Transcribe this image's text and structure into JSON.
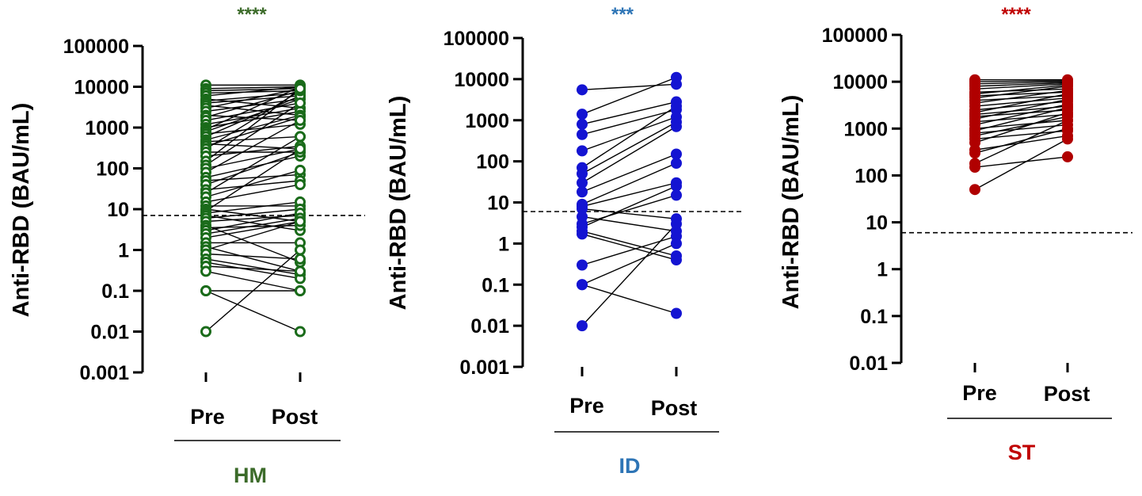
{
  "chart_data": [
    {
      "type": "scatter",
      "significance": "****",
      "group_label": "HM",
      "ylabel": "Anti-RBD (BAU/mL)",
      "categories": [
        "Pre",
        "Post"
      ],
      "y_scale": "log",
      "ylim": [
        0.001,
        100000
      ],
      "y_ticks": [
        "0.001",
        "0.01",
        "0.1",
        "1",
        "10",
        "100",
        "1000",
        "10000",
        "100000"
      ],
      "threshold": 7,
      "color": "#1a6b1a",
      "text_color": "#3c6b2a",
      "marker": "open-circle",
      "pairs": [
        [
          11000,
          11000
        ],
        [
          9000,
          10000
        ],
        [
          8000,
          9000
        ],
        [
          7000,
          8000
        ],
        [
          6000,
          10000
        ],
        [
          5000,
          3000
        ],
        [
          4500,
          7000
        ],
        [
          4000,
          6000
        ],
        [
          3500,
          2000
        ],
        [
          3000,
          9000
        ],
        [
          2500,
          5000
        ],
        [
          2000,
          1500
        ],
        [
          1800,
          8000
        ],
        [
          1500,
          4000
        ],
        [
          1200,
          3000
        ],
        [
          1000,
          2500
        ],
        [
          900,
          10000
        ],
        [
          800,
          5000
        ],
        [
          700,
          1200
        ],
        [
          600,
          6000
        ],
        [
          500,
          2000
        ],
        [
          450,
          600
        ],
        [
          400,
          300
        ],
        [
          350,
          1800
        ],
        [
          300,
          8000
        ],
        [
          250,
          250
        ],
        [
          200,
          350
        ],
        [
          150,
          9000
        ],
        [
          120,
          4000
        ],
        [
          100,
          300
        ],
        [
          80,
          1500
        ],
        [
          60,
          200
        ],
        [
          50,
          70
        ],
        [
          40,
          250
        ],
        [
          30,
          50
        ],
        [
          25,
          600
        ],
        [
          20,
          90
        ],
        [
          15,
          40
        ],
        [
          12,
          12
        ],
        [
          10,
          5
        ],
        [
          9,
          300
        ],
        [
          8,
          15
        ],
        [
          7,
          3
        ],
        [
          6,
          10
        ],
        [
          5,
          7
        ],
        [
          4,
          0.5
        ],
        [
          3.5,
          4
        ],
        [
          3,
          8
        ],
        [
          2.5,
          6
        ],
        [
          2,
          5
        ],
        [
          1.5,
          1.5
        ],
        [
          1.2,
          0.3
        ],
        [
          1,
          5
        ],
        [
          0.8,
          0.6
        ],
        [
          0.6,
          0.25
        ],
        [
          0.5,
          0.2
        ],
        [
          0.4,
          0.3
        ],
        [
          0.3,
          0.1
        ],
        [
          0.1,
          0.1
        ],
        [
          0.1,
          0.01
        ],
        [
          0.01,
          1
        ]
      ]
    },
    {
      "type": "scatter",
      "significance": "***",
      "group_label": "ID",
      "ylabel": "Anti-RBD (BAU/mL)",
      "categories": [
        "Pre",
        "Post"
      ],
      "y_scale": "log",
      "ylim": [
        0.001,
        100000
      ],
      "y_ticks": [
        "0.001",
        "0.01",
        "0.1",
        "1",
        "10",
        "100",
        "1000",
        "10000",
        "100000"
      ],
      "threshold": 6,
      "color": "#1414d2",
      "text_color": "#2e75b6",
      "marker": "filled-circle",
      "pairs": [
        [
          5500,
          7500
        ],
        [
          1400,
          11000
        ],
        [
          800,
          2800
        ],
        [
          450,
          1800
        ],
        [
          180,
          1200
        ],
        [
          70,
          2200
        ],
        [
          50,
          900
        ],
        [
          30,
          700
        ],
        [
          18,
          150
        ],
        [
          9,
          90
        ],
        [
          8,
          30
        ],
        [
          7,
          4
        ],
        [
          4.5,
          2
        ],
        [
          3,
          15
        ],
        [
          2.5,
          25
        ],
        [
          2,
          0.5
        ],
        [
          1.7,
          0.4
        ],
        [
          0.3,
          1.5
        ],
        [
          0.1,
          0.02
        ],
        [
          0.1,
          1
        ],
        [
          0.01,
          3
        ]
      ]
    },
    {
      "type": "scatter",
      "significance": "****",
      "group_label": "ST",
      "ylabel": "Anti-RBD (BAU/mL)",
      "categories": [
        "Pre",
        "Post"
      ],
      "y_scale": "log",
      "ylim": [
        0.01,
        100000
      ],
      "y_ticks": [
        "0.01",
        "0.1",
        "1",
        "10",
        "100",
        "1000",
        "10000",
        "100000"
      ],
      "threshold": 6,
      "color": "#b00000",
      "text_color": "#c00000",
      "marker": "filled-circle",
      "pairs": [
        [
          11000,
          11000
        ],
        [
          10000,
          10500
        ],
        [
          9000,
          10000
        ],
        [
          8000,
          9500
        ],
        [
          7000,
          9000
        ],
        [
          6000,
          7000
        ],
        [
          5500,
          8500
        ],
        [
          5000,
          6000
        ],
        [
          4500,
          8000
        ],
        [
          4000,
          5000
        ],
        [
          3500,
          6500
        ],
        [
          3000,
          4500
        ],
        [
          2500,
          3800
        ],
        [
          2200,
          5500
        ],
        [
          2000,
          3000
        ],
        [
          1800,
          2500
        ],
        [
          1600,
          4200
        ],
        [
          1400,
          2000
        ],
        [
          1200,
          3300
        ],
        [
          1000,
          1500
        ],
        [
          900,
          2800
        ],
        [
          800,
          1200
        ],
        [
          700,
          1800
        ],
        [
          600,
          900
        ],
        [
          500,
          2200
        ],
        [
          350,
          700
        ],
        [
          300,
          1000
        ],
        [
          180,
          1500
        ],
        [
          150,
          250
        ],
        [
          50,
          600
        ]
      ]
    }
  ]
}
